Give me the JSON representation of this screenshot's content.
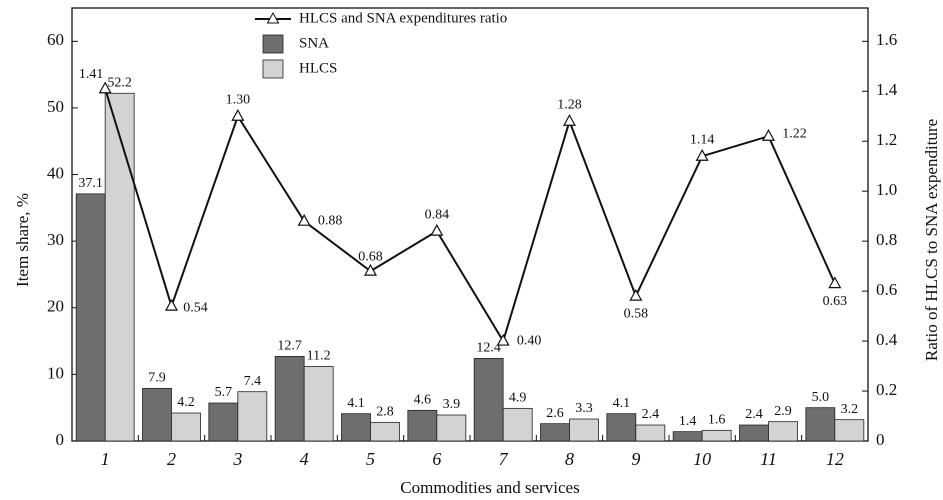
{
  "chart_data": {
    "type": "bar",
    "x_label": "Commodities and services",
    "y_label": "Item share, %",
    "y2_label": "Ratio of HLCS to SNA expenditure",
    "categories": [
      "1",
      "2",
      "3",
      "4",
      "5",
      "6",
      "7",
      "8",
      "9",
      "10",
      "11",
      "12"
    ],
    "ylim": [
      0,
      65
    ],
    "yticks": [
      0,
      10,
      20,
      30,
      40,
      50,
      60
    ],
    "y2lim": [
      0,
      1.7333
    ],
    "y2ticks": [
      0,
      0.2,
      0.4,
      0.6,
      0.8,
      {
        "value": 1,
        "label": "1.0"
      },
      1.2,
      1.4,
      1.6
    ],
    "series": [
      {
        "name": "SNA",
        "type": "bar",
        "color": "#6e6e6e",
        "values": [
          37.1,
          7.9,
          5.7,
          12.7,
          4.1,
          4.6,
          12.4,
          2.6,
          4.1,
          1.4,
          2.4,
          5.0
        ],
        "value_labels": [
          "37.1",
          "7.9",
          "5.7",
          "12.7",
          "4.1",
          "4.6",
          "12.4",
          "2.6",
          "4.1",
          "1.4",
          "2.4",
          "5.0"
        ]
      },
      {
        "name": "HLCS",
        "type": "bar",
        "color": "#d3d3d3",
        "values": [
          52.2,
          4.2,
          7.4,
          11.2,
          2.8,
          3.9,
          4.9,
          3.3,
          2.4,
          1.6,
          2.9,
          3.2
        ],
        "value_labels": [
          "52.2",
          "4.2",
          "7.4",
          "11.2",
          "2.8",
          "3.9",
          "4.9",
          "3.3",
          "2.4",
          "1.6",
          "2.9",
          "3.2"
        ]
      },
      {
        "name": "HLCS and SNA expenditures ratio",
        "type": "line",
        "axis": "y2",
        "color": "#111111",
        "values": [
          1.41,
          0.54,
          1.3,
          0.88,
          0.68,
          0.84,
          0.4,
          1.28,
          0.58,
          1.14,
          1.22,
          0.63
        ],
        "value_labels": [
          "1.41",
          "0.54",
          "1.30",
          "0.88",
          "0.68",
          "0.84",
          "0.40",
          "1.28",
          "0.58",
          "1.14",
          "1.22",
          "0.63"
        ]
      }
    ]
  }
}
